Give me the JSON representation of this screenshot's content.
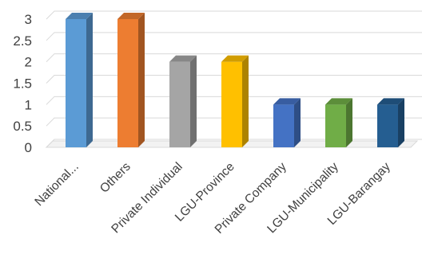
{
  "chart_data": {
    "type": "bar",
    "title": "",
    "xlabel": "",
    "ylabel": "",
    "categories": [
      "National...",
      "Others",
      "Private Individual",
      "LGU-Province",
      "Private Company",
      "LGU-Municipality",
      "LGU-Barangay"
    ],
    "values": [
      3,
      3,
      2,
      2,
      1,
      1,
      1
    ],
    "colors": [
      "#5b9bd5",
      "#ed7d31",
      "#a5a5a5",
      "#ffc000",
      "#4472c4",
      "#70ad47",
      "#255e91"
    ],
    "ylim": [
      0,
      3
    ],
    "yticks": [
      "0",
      "0.5",
      "1",
      "1.5",
      "2",
      "2.5",
      "3"
    ],
    "grid": true,
    "legend": "none",
    "style": "3d-column"
  }
}
